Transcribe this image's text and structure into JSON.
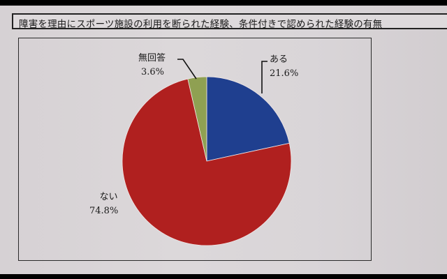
{
  "title": "障害を理由にスポーツ施設の利用を断られた経験、条件付きで認められた経験の有無",
  "chart_data": {
    "type": "pie",
    "title": "障害を理由にスポーツ施設の利用を断られた経験、条件付きで認められた経験の有無",
    "categories": [
      "ある",
      "ない",
      "無回答"
    ],
    "values": [
      21.6,
      74.8,
      3.6
    ],
    "unit": "%",
    "colors": [
      "#1f3f8f",
      "#b0201f",
      "#8fa052"
    ],
    "start_angle_deg": 0,
    "direction": "clockwise",
    "labels": [
      {
        "name": "ある",
        "pct": "21.6%"
      },
      {
        "name": "ない",
        "pct": "74.8%"
      },
      {
        "name": "無回答",
        "pct": "3.6%"
      }
    ]
  }
}
